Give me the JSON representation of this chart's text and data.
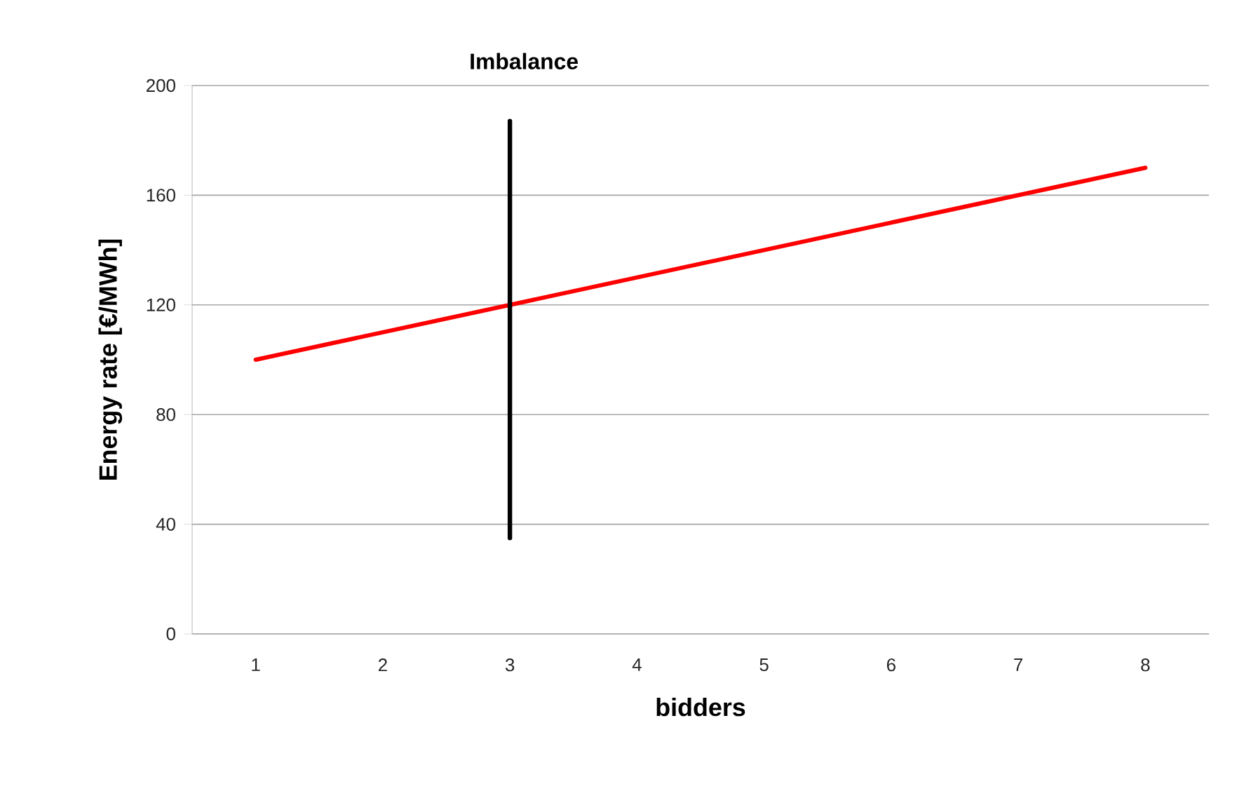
{
  "chart_data": {
    "type": "line",
    "xlabel": "bidders",
    "ylabel": "Energy rate [€/MWh]",
    "x": [
      1,
      2,
      3,
      4,
      5,
      6,
      7,
      8
    ],
    "series": [
      {
        "color": "#ff0000",
        "values": [
          100,
          110,
          120,
          130,
          140,
          150,
          160,
          170
        ]
      },
      {
        "name": "Imbalance",
        "color": "#000000",
        "x": [
          3,
          3
        ],
        "values": [
          35,
          187
        ]
      }
    ],
    "xlim": [
      0.5,
      8.5
    ],
    "xticks": [
      1,
      2,
      3,
      4,
      5,
      6,
      7,
      8
    ],
    "ylim": [
      0,
      200
    ],
    "yticks": [
      0,
      40,
      80,
      120,
      160,
      200
    ],
    "grid": "y",
    "marker": "none",
    "line_style": "solid"
  }
}
